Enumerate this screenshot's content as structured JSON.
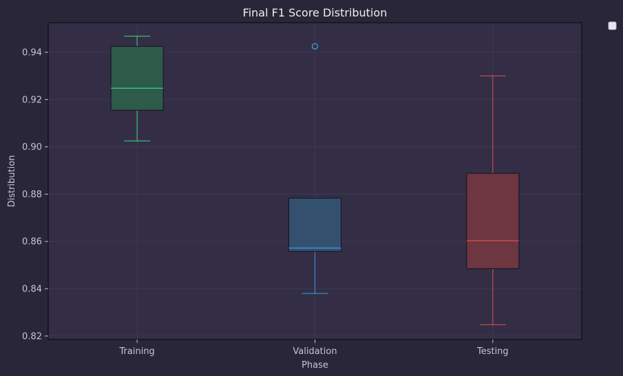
{
  "chart_data": {
    "type": "box",
    "title": "Final F1 Score Distribution",
    "xlabel": "Phase",
    "ylabel": "Distribution",
    "ylim": [
      0.8185,
      0.9525
    ],
    "yticks": [
      "0.82",
      "0.84",
      "0.86",
      "0.88",
      "0.90",
      "0.92",
      "0.94"
    ],
    "grid": true,
    "legend": {
      "placement": "outside-top-right",
      "entries": []
    },
    "colors": {
      "background": "#2a2639",
      "plot_area": "#332e45",
      "axes": "#0d0c12"
    },
    "series": [
      {
        "category": "Training",
        "color": "#3ddc84",
        "fill": "#2e5a4a",
        "whisker_low": 0.9025,
        "q1": 0.9155,
        "median": 0.9248,
        "q3": 0.9425,
        "whisker_high": 0.9468,
        "outliers": []
      },
      {
        "category": "Validation",
        "color": "#3a9ee4",
        "fill": "#34506f",
        "whisker_low": 0.838,
        "q1": 0.8558,
        "median": 0.8572,
        "q3": 0.8783,
        "whisker_high": 0.8783,
        "outliers": [
          0.9425
        ]
      },
      {
        "category": "Testing",
        "color": "#e5534b",
        "fill": "#6d3640",
        "whisker_low": 0.8248,
        "q1": 0.8485,
        "median": 0.8603,
        "q3": 0.8888,
        "whisker_high": 0.93,
        "outliers": []
      }
    ]
  }
}
